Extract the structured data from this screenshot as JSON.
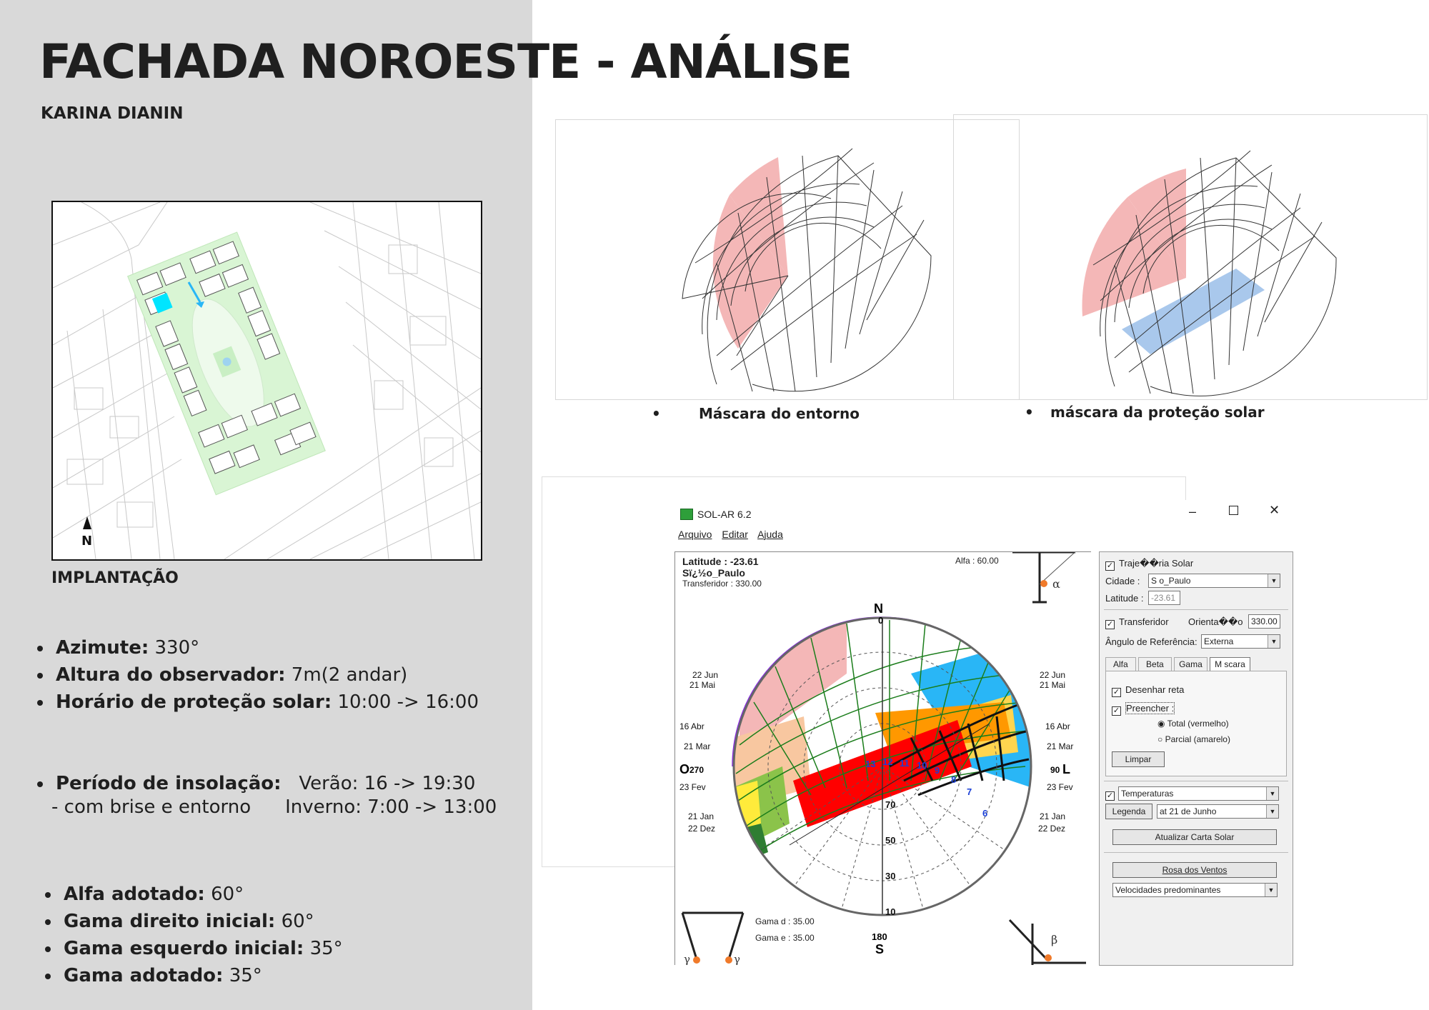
{
  "page": {
    "title": "FACHADA NOROESTE - ANÁLISE",
    "author": "KARINA DIANIN",
    "site_caption": "IMPLANTAÇÃO",
    "north_label": "N"
  },
  "facts_a": [
    {
      "label": "Azimute:",
      "value": "330°"
    },
    {
      "label": "Altura do observador:",
      "value": "7m(2 andar)"
    },
    {
      "label": "Horário de  proteção solar:",
      "value": "10:00 -> 16:00"
    }
  ],
  "facts_b": {
    "label": "Período de insolação:",
    "value": "Verão: 16 -> 19:30",
    "sub_prefix": "- com brise e entorno",
    "sub_value": "Inverno: 7:00 -> 13:00"
  },
  "facts_c": [
    {
      "label": "Alfa adotado:",
      "value": "60°"
    },
    {
      "label": "Gama direito inicial:",
      "value": "60°"
    },
    {
      "label": "Gama esquerdo inicial:",
      "value": "35°"
    },
    {
      "label": "Gama adotado:",
      "value": "35°"
    }
  ],
  "masks": {
    "entorno_caption": "Máscara do entorno",
    "protecao_caption": "máscara da proteção solar"
  },
  "app": {
    "title": "SOL-AR 6.2",
    "menu": [
      "Arquivo",
      "Editar",
      "Ajuda"
    ],
    "latitude_text": "Latitude : -23.61",
    "city_text": "Sï¿½o_Paulo",
    "transferidor_text": "Transferidor : 330.00",
    "alfa_text": "Alfa : 60.00",
    "gama_d_text": "Gama d : 35.00",
    "gama_e_text": "Gama e : 35.00",
    "cardinal": {
      "n": "N",
      "s": "S",
      "o": "O",
      "l": "L",
      "n_deg": "0",
      "s_deg": "180",
      "o_deg": "270",
      "l_deg": "90"
    },
    "left_dates": [
      "22 Jun",
      "21 Mai",
      "16 Abr",
      "21 Mar",
      "23 Fev",
      "21 Jan",
      "22 Dez"
    ],
    "right_dates": [
      "22 Jun",
      "21 Mai",
      "16 Abr",
      "21 Mar",
      "23 Fev",
      "21 Jan",
      "22 Dez"
    ],
    "altitudes": [
      "70",
      "50",
      "30",
      "10"
    ],
    "hours": [
      "13",
      "12",
      "11",
      "10",
      "9",
      "8",
      "7",
      "6"
    ],
    "side": {
      "trajetoria_label": "Traje��ria Solar",
      "cidade_label": "Cidade :",
      "cidade_value": "S o_Paulo",
      "latitude_label": "Latitude :",
      "latitude_value": "-23.61",
      "transferidor_label": "Transferidor",
      "orientacao_label": "Orienta��o",
      "orientacao_value": "330.00",
      "angulo_label": "Ângulo de Referência:",
      "angulo_value": "Externa",
      "tabs": [
        "Alfa",
        "Beta",
        "Gama",
        "M scara"
      ],
      "desenhar_label": "Desenhar reta",
      "preencher_label": "Preencher :",
      "total_label": "Total (vermelho)",
      "parcial_label": "Parcial (amarelo)",
      "limpar_label": "Limpar",
      "temperaturas_value": "Temperaturas",
      "legenda_label": "Legenda",
      "data_value": "at  21 de Junho",
      "atualizar_label": "Atualizar Carta Solar",
      "rosa_label": "Rosa dos Ventos",
      "velocidades_value": "Velocidades predominantes"
    }
  }
}
